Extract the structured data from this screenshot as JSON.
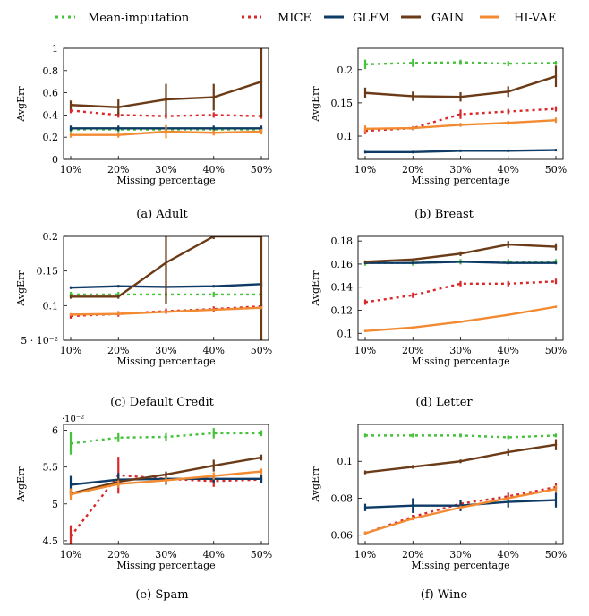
{
  "legend": {
    "items": [
      {
        "name": "Mean-imputation",
        "color": "#45c13a",
        "style": "dotted"
      },
      {
        "name": "MICE",
        "color": "#d8282a",
        "style": "dotted"
      },
      {
        "name": "GLFM",
        "color": "#0e3a66",
        "style": "solid"
      },
      {
        "name": "GAIN",
        "color": "#6b3a16",
        "style": "solid"
      },
      {
        "name": "HI-VAE",
        "color": "#f28a32",
        "style": "solid"
      }
    ]
  },
  "chart_data": [
    {
      "type": "line",
      "caption": "(a) Adult",
      "categories": [
        "10%",
        "20%",
        "30%",
        "40%",
        "50%"
      ],
      "xlabel": "Missing percentage",
      "ylabel": "AvgErr",
      "ylim": [
        0,
        1
      ],
      "yticks": [
        0,
        0.2,
        0.4,
        0.6,
        0.8,
        1
      ],
      "ytick_labels": [
        "0",
        "0.2",
        "0.4",
        "0.6",
        "0.8",
        "1"
      ],
      "exponent_label": "",
      "series": [
        {
          "name": "Mean-imputation",
          "values": [
            0.27,
            0.27,
            0.27,
            0.27,
            0.27
          ],
          "errors": [
            0,
            0,
            0,
            0,
            0
          ]
        },
        {
          "name": "MICE",
          "values": [
            0.44,
            0.4,
            0.39,
            0.4,
            0.39
          ],
          "errors": [
            0,
            0,
            0,
            0,
            0
          ]
        },
        {
          "name": "GLFM",
          "values": [
            0.28,
            0.28,
            0.28,
            0.28,
            0.28
          ],
          "errors": [
            0,
            0,
            0,
            0,
            0
          ]
        },
        {
          "name": "GAIN",
          "values": [
            0.49,
            0.47,
            0.54,
            0.56,
            0.7
          ],
          "errors": [
            0.04,
            0.07,
            0.14,
            0.12,
            0.32
          ]
        },
        {
          "name": "HI-VAE",
          "values": [
            0.22,
            0.22,
            0.25,
            0.24,
            0.25
          ],
          "errors": [
            0,
            0,
            0.06,
            0,
            0
          ]
        }
      ]
    },
    {
      "type": "line",
      "caption": "(b) Breast",
      "categories": [
        "10%",
        "20%",
        "30%",
        "40%",
        "50%"
      ],
      "xlabel": "Missing percentage",
      "ylabel": "AvgErr",
      "ylim": [
        0.065,
        0.232
      ],
      "yticks": [
        0.1,
        0.15,
        0.2
      ],
      "ytick_labels": [
        "0.1",
        "0.15",
        "0.2"
      ],
      "exponent_label": "",
      "series": [
        {
          "name": "Mean-imputation",
          "values": [
            0.208,
            0.21,
            0.211,
            0.209,
            0.21
          ],
          "errors": [
            0.007,
            0.006,
            0.004,
            0.004,
            0.003
          ]
        },
        {
          "name": "MICE",
          "values": [
            0.108,
            0.112,
            0.133,
            0.137,
            0.141
          ],
          "errors": [
            0.005,
            0.003,
            0.007,
            0.004,
            0.004
          ]
        },
        {
          "name": "GLFM",
          "values": [
            0.076,
            0.076,
            0.078,
            0.078,
            0.079
          ],
          "errors": [
            0.002,
            0.002,
            0.002,
            0.002,
            0.002
          ]
        },
        {
          "name": "GAIN",
          "values": [
            0.165,
            0.16,
            0.159,
            0.167,
            0.19
          ],
          "errors": [
            0.008,
            0.007,
            0.007,
            0.008,
            0.016
          ]
        },
        {
          "name": "HI-VAE",
          "values": [
            0.111,
            0.112,
            0.117,
            0.12,
            0.124
          ],
          "errors": [
            0.005,
            0.003,
            0.003,
            0.003,
            0.004
          ]
        }
      ]
    },
    {
      "type": "line",
      "caption": "(c) Default Credit",
      "categories": [
        "10%",
        "20%",
        "30%",
        "40%",
        "50%"
      ],
      "xlabel": "Missing percentage",
      "ylabel": "AvgErr",
      "ylim": [
        0.05,
        0.2
      ],
      "yticks": [
        0.05,
        0.1,
        0.15,
        0.2
      ],
      "ytick_labels": [
        "5 · 10⁻²",
        "0.1",
        "0.15",
        "0.2"
      ],
      "exponent_label": "",
      "series": [
        {
          "name": "Mean-imputation",
          "values": [
            0.116,
            0.116,
            0.116,
            0.116,
            0.116
          ],
          "errors": [
            0,
            0,
            0,
            0,
            0
          ]
        },
        {
          "name": "MICE",
          "values": [
            0.085,
            0.088,
            0.092,
            0.095,
            0.099
          ],
          "errors": [
            0,
            0,
            0,
            0,
            0
          ]
        },
        {
          "name": "GLFM",
          "values": [
            0.126,
            0.128,
            0.127,
            0.128,
            0.131
          ],
          "errors": [
            0.002,
            0.002,
            0.002,
            0.002,
            0.004
          ]
        },
        {
          "name": "GAIN",
          "values": [
            0.113,
            0.113,
            0.162,
            0.2,
            0.2
          ],
          "errors": [
            0.003,
            0.003,
            0.06,
            0,
            0.16
          ]
        },
        {
          "name": "HI-VAE",
          "values": [
            0.087,
            0.088,
            0.091,
            0.094,
            0.097
          ],
          "errors": [
            0.002,
            0.002,
            0.002,
            0.002,
            0.002
          ]
        }
      ]
    },
    {
      "type": "line",
      "caption": "(d) Letter",
      "categories": [
        "10%",
        "20%",
        "30%",
        "40%",
        "50%"
      ],
      "xlabel": "Missing percentage",
      "ylabel": "AvgErr",
      "ylim": [
        0.094,
        0.184
      ],
      "yticks": [
        0.1,
        0.12,
        0.14,
        0.16,
        0.18
      ],
      "ytick_labels": [
        "0.1",
        "0.12",
        "0.14",
        "0.16",
        "0.18"
      ],
      "exponent_label": "",
      "series": [
        {
          "name": "Mean-imputation",
          "values": [
            0.161,
            0.161,
            0.162,
            0.162,
            0.162
          ],
          "errors": [
            0,
            0,
            0,
            0,
            0
          ]
        },
        {
          "name": "MICE",
          "values": [
            0.127,
            0.133,
            0.143,
            0.143,
            0.145
          ],
          "errors": [
            0,
            0,
            0,
            0,
            0
          ]
        },
        {
          "name": "GLFM",
          "values": [
            0.161,
            0.161,
            0.162,
            0.161,
            0.161
          ],
          "errors": [
            0.001,
            0.001,
            0.001,
            0.001,
            0.001
          ]
        },
        {
          "name": "GAIN",
          "values": [
            0.162,
            0.164,
            0.169,
            0.177,
            0.175
          ],
          "errors": [
            0.001,
            0.001,
            0.002,
            0.003,
            0.003
          ]
        },
        {
          "name": "HI-VAE",
          "values": [
            0.102,
            0.105,
            0.11,
            0.116,
            0.123
          ],
          "errors": [
            0.001,
            0.001,
            0.001,
            0.001,
            0.001
          ]
        }
      ]
    },
    {
      "type": "line",
      "caption": "(e) Spam",
      "categories": [
        "10%",
        "20%",
        "30%",
        "40%",
        "50%"
      ],
      "xlabel": "Missing percentage",
      "ylabel": "AvgErr",
      "ylim": [
        4.45,
        6.08
      ],
      "yticks": [
        4.5,
        5,
        5.5,
        6
      ],
      "ytick_labels": [
        "4.5",
        "5",
        "5.5",
        "6"
      ],
      "exponent_label": "·10⁻²",
      "series": [
        {
          "name": "Mean-imputation",
          "values": [
            5.82,
            5.9,
            5.91,
            5.96,
            5.96
          ],
          "errors": [
            0.15,
            0.06,
            0.05,
            0.07,
            0.04
          ]
        },
        {
          "name": "MICE",
          "values": [
            4.56,
            5.39,
            5.34,
            5.31,
            5.33
          ],
          "errors": [
            0.15,
            0.25,
            0.08,
            0.08,
            0.05
          ]
        },
        {
          "name": "GLFM",
          "values": [
            5.26,
            5.33,
            5.34,
            5.34,
            5.34
          ],
          "errors": [
            0.12,
            0.09,
            0.08,
            0.06,
            0.05
          ]
        },
        {
          "name": "GAIN",
          "values": [
            5.14,
            5.3,
            5.4,
            5.52,
            5.63
          ],
          "errors": [
            0.04,
            0.05,
            0.04,
            0.08,
            0.04
          ]
        },
        {
          "name": "HI-VAE",
          "values": [
            5.13,
            5.27,
            5.32,
            5.38,
            5.44
          ],
          "errors": [
            0.08,
            0.05,
            0.05,
            0.05,
            0.04
          ]
        }
      ]
    },
    {
      "type": "line",
      "caption": "(f) Wine",
      "categories": [
        "10%",
        "20%",
        "30%",
        "40%",
        "50%"
      ],
      "xlabel": "Missing percentage",
      "ylabel": "AvgErr",
      "ylim": [
        0.055,
        0.12
      ],
      "yticks": [
        0.06,
        0.08,
        0.1
      ],
      "ytick_labels": [
        "0.06",
        "0.08",
        "0.1"
      ],
      "exponent_label": "",
      "series": [
        {
          "name": "Mean-imputation",
          "values": [
            0.114,
            0.114,
            0.114,
            0.113,
            0.114
          ],
          "errors": [
            0.001,
            0.001,
            0.001,
            0.001,
            0.001
          ]
        },
        {
          "name": "MICE",
          "values": [
            0.061,
            0.07,
            0.077,
            0.081,
            0.086
          ],
          "errors": [
            0.001,
            0.001,
            0.002,
            0.002,
            0.002
          ]
        },
        {
          "name": "GLFM",
          "values": [
            0.075,
            0.076,
            0.076,
            0.078,
            0.079
          ],
          "errors": [
            0.002,
            0.004,
            0.003,
            0.003,
            0.004
          ]
        },
        {
          "name": "GAIN",
          "values": [
            0.094,
            0.097,
            0.1,
            0.105,
            0.109
          ],
          "errors": [
            0.001,
            0.001,
            0.001,
            0.002,
            0.003
          ]
        },
        {
          "name": "HI-VAE",
          "values": [
            0.061,
            0.069,
            0.075,
            0.08,
            0.085
          ],
          "errors": [
            0.001,
            0.001,
            0.001,
            0.001,
            0.002
          ]
        }
      ]
    }
  ]
}
